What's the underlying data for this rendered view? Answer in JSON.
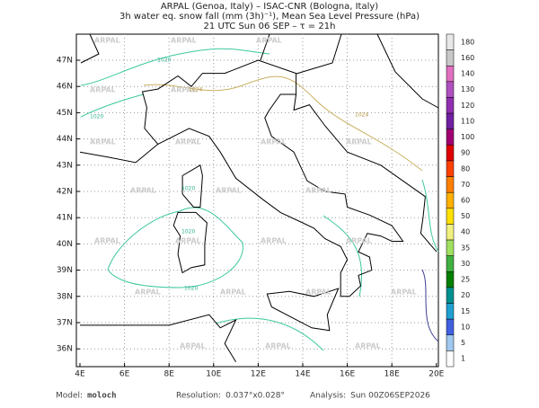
{
  "header": {
    "lines": [
      "ARPAL (Genoa, Italy)  –  ISAC-CNR (Bologna, Italy)",
      "3h water eq. snow fall (mm (3h)⁻¹), Mean Sea Level Pressure (hPa)",
      "21 UTC Sun 06 SEP  –  τ = 21h"
    ]
  },
  "map": {
    "lon_labels": [
      "4E",
      "6E",
      "8E",
      "10E",
      "12E",
      "14E",
      "16E",
      "18E",
      "20E"
    ],
    "lat_labels": [
      "47N",
      "46N",
      "45N",
      "44N",
      "43N",
      "42N",
      "41N",
      "40N",
      "39N",
      "38N",
      "37N",
      "36N"
    ],
    "watermark": "ARPAL",
    "contour_labels": [
      "1020",
      "1024"
    ]
  },
  "colorbar": {
    "levels": [
      180,
      160,
      140,
      130,
      120,
      110,
      100,
      90,
      80,
      70,
      60,
      50,
      40,
      35,
      30,
      25,
      20,
      15,
      10,
      5,
      1
    ],
    "colors": [
      "#e8e8e8",
      "#c8c8c8",
      "#e070c0",
      "#b050c0",
      "#9030b0",
      "#7020a0",
      "#a00070",
      "#e00000",
      "#ff4000",
      "#ff8000",
      "#ffb000",
      "#ffe000",
      "#f0f080",
      "#a0e060",
      "#40b040",
      "#008000",
      "#009090",
      "#20a0d0",
      "#4060e0",
      "#a0c8f0",
      "#ffffff"
    ]
  },
  "footer": {
    "items": [
      {
        "label": "Model:",
        "value": "moloch"
      },
      {
        "label": "Resolution:",
        "value": "0.037°x0.028°"
      },
      {
        "label": "Analysis:",
        "value": "Sun 00Z06SEP2026"
      }
    ]
  }
}
